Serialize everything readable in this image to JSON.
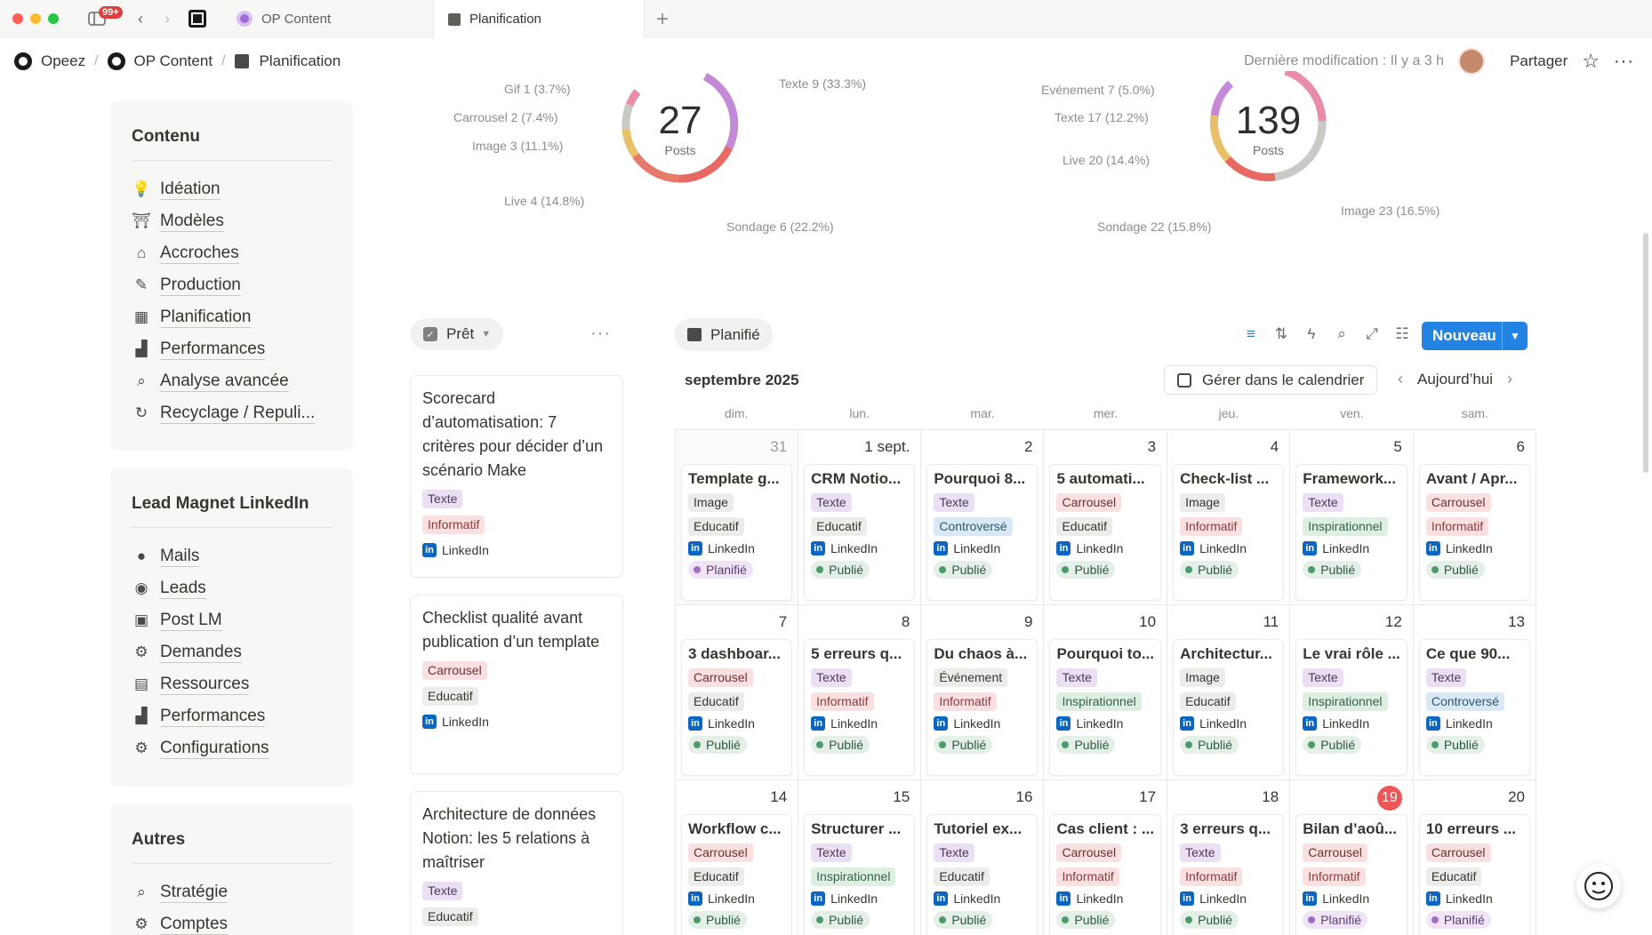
{
  "window": {
    "notif_badge": "99+",
    "tabs": [
      {
        "label": "OP Content"
      },
      {
        "label": "Planification"
      }
    ]
  },
  "breadcrumb": [
    "Opeez",
    "OP Content",
    "Planification"
  ],
  "topbar": {
    "last_modified": "Dernière modification : Il y a 3 h",
    "share": "Partager"
  },
  "sidebar": {
    "sections": [
      {
        "title": "Contenu",
        "items": [
          {
            "label": "Idéation",
            "icon": "lightbulb-icon"
          },
          {
            "label": "Modèles",
            "icon": "torii-icon"
          },
          {
            "label": "Accroches",
            "icon": "hanger-icon"
          },
          {
            "label": "Production",
            "icon": "edit-icon"
          },
          {
            "label": "Planification",
            "icon": "calendar-icon"
          },
          {
            "label": "Performances",
            "icon": "chart-icon"
          },
          {
            "label": "Analyse avancée",
            "icon": "search-icon"
          },
          {
            "label": "Recyclage / Repuli...",
            "icon": "recycle-icon"
          }
        ]
      },
      {
        "title": "Lead Magnet LinkedIn",
        "items": [
          {
            "label": "Mails",
            "icon": "chat-bubble-icon"
          },
          {
            "label": "Leads",
            "icon": "user-circle-icon"
          },
          {
            "label": "Post LM",
            "icon": "robot-icon"
          },
          {
            "label": "Demandes",
            "icon": "gears-icon"
          },
          {
            "label": "Ressources",
            "icon": "book-icon"
          },
          {
            "label": "Performances",
            "icon": "chart-icon"
          },
          {
            "label": "Configurations",
            "icon": "gear-icon"
          }
        ]
      },
      {
        "title": "Autres",
        "items": [
          {
            "label": "Stratégie",
            "icon": "search-icon"
          },
          {
            "label": "Comptes",
            "icon": "gear-icon"
          }
        ]
      }
    ]
  },
  "donuts": [
    {
      "total": "27",
      "unit": "Posts",
      "labels": [
        "Gif 1 (3.7%)",
        "Carrousel 2 (7.4%)",
        "Image 3 (11.1%)",
        "Live 4 (14.8%)",
        "Sondage 6 (22.2%)",
        "Texte 9 (33.3%)"
      ]
    },
    {
      "total": "139",
      "unit": "Posts",
      "labels": [
        "Evénement 7 (5.0%)",
        "Texte 17 (12.2%)",
        "Live 20 (14.4%)",
        "Sondage 22 (15.8%)",
        "Image 23 (16.5%)"
      ]
    }
  ],
  "kanban": {
    "group_label": "Prêt",
    "more": "···",
    "cards": [
      {
        "title": "Scorecard d’automatisation: 7 critères pour décider d’un scénario Make",
        "tags": [
          {
            "label": "Texte",
            "cls": "t-Texte"
          },
          {
            "label": "Informatif",
            "cls": "t-Informatif"
          }
        ],
        "channel": "LinkedIn"
      },
      {
        "title": "Checklist qualité avant publication d’un template",
        "tags": [
          {
            "label": "Carrousel",
            "cls": "t-Carrousel"
          },
          {
            "label": "Educatif",
            "cls": "t-Educatif"
          }
        ],
        "channel": "LinkedIn"
      },
      {
        "title": "Architecture de données Notion: les 5 relations à maîtriser",
        "tags": [
          {
            "label": "Texte",
            "cls": "t-Texte"
          },
          {
            "label": "Educatif",
            "cls": "t-Educatif"
          }
        ],
        "channel": ""
      }
    ]
  },
  "calendar": {
    "view_label": "Planifié",
    "new_label": "Nouveau",
    "month": "septembre 2025",
    "manage_label": "Gérer dans le calendrier",
    "today_label": "Aujourd’hui",
    "weekdays": [
      "dim.",
      "lun.",
      "mar.",
      "mer.",
      "jeu.",
      "ven.",
      "sam."
    ],
    "days": [
      {
        "num": "31",
        "muted": true,
        "title": "Template g...",
        "format": "Image",
        "fcls": "t-Image",
        "tone": "Educatif",
        "tcls": "t-Educatif",
        "channel": "LinkedIn",
        "status": "Planifié",
        "scls": "s-Planifie"
      },
      {
        "num": "1 sept.",
        "title": "CRM Notio...",
        "format": "Texte",
        "fcls": "t-Texte",
        "tone": "Educatif",
        "tcls": "t-Educatif",
        "channel": "LinkedIn",
        "status": "Publié",
        "scls": "s-Publie"
      },
      {
        "num": "2",
        "title": "Pourquoi 8...",
        "format": "Texte",
        "fcls": "t-Texte",
        "tone": "Controversé",
        "tcls": "t-Controverse",
        "channel": "LinkedIn",
        "status": "Publié",
        "scls": "s-Publie"
      },
      {
        "num": "3",
        "title": "5 automati...",
        "format": "Carrousel",
        "fcls": "t-Carrousel",
        "tone": "Educatif",
        "tcls": "t-Educatif",
        "channel": "LinkedIn",
        "status": "Publié",
        "scls": "s-Publie"
      },
      {
        "num": "4",
        "title": "Check-list ...",
        "format": "Image",
        "fcls": "t-Image",
        "tone": "Informatif",
        "tcls": "t-Informatif",
        "channel": "LinkedIn",
        "status": "Publié",
        "scls": "s-Publie"
      },
      {
        "num": "5",
        "title": "Framework...",
        "format": "Texte",
        "fcls": "t-Texte",
        "tone": "Inspirationnel",
        "tcls": "t-Inspirationnel",
        "channel": "LinkedIn",
        "status": "Publié",
        "scls": "s-Publie"
      },
      {
        "num": "6",
        "title": "Avant / Apr...",
        "format": "Carrousel",
        "fcls": "t-Carrousel",
        "tone": "Informatif",
        "tcls": "t-Informatif",
        "channel": "LinkedIn",
        "status": "Publié",
        "scls": "s-Publie"
      },
      {
        "num": "7",
        "title": "3 dashboar...",
        "format": "Carrousel",
        "fcls": "t-Carrousel",
        "tone": "Educatif",
        "tcls": "t-Educatif",
        "channel": "LinkedIn",
        "status": "Publié",
        "scls": "s-Publie"
      },
      {
        "num": "8",
        "title": "5 erreurs q...",
        "format": "Texte",
        "fcls": "t-Texte",
        "tone": "Informatif",
        "tcls": "t-Informatif",
        "channel": "LinkedIn",
        "status": "Publié",
        "scls": "s-Publie"
      },
      {
        "num": "9",
        "title": "Du chaos à...",
        "format": "Événement",
        "fcls": "t-Evenement",
        "tone": "Informatif",
        "tcls": "t-Informatif",
        "channel": "LinkedIn",
        "status": "Publié",
        "scls": "s-Publie"
      },
      {
        "num": "10",
        "title": "Pourquoi to...",
        "format": "Texte",
        "fcls": "t-Texte",
        "tone": "Inspirationnel",
        "tcls": "t-Inspirationnel",
        "channel": "LinkedIn",
        "status": "Publié",
        "scls": "s-Publie"
      },
      {
        "num": "11",
        "title": "Architectur...",
        "format": "Image",
        "fcls": "t-Image",
        "tone": "Educatif",
        "tcls": "t-Educatif",
        "channel": "LinkedIn",
        "status": "Publié",
        "scls": "s-Publie"
      },
      {
        "num": "12",
        "title": "Le vrai rôle ...",
        "format": "Texte",
        "fcls": "t-Texte",
        "tone": "Inspirationnel",
        "tcls": "t-Inspirationnel",
        "channel": "LinkedIn",
        "status": "Publié",
        "scls": "s-Publie"
      },
      {
        "num": "13",
        "title": "Ce que 90...",
        "format": "Texte",
        "fcls": "t-Texte",
        "tone": "Controversé",
        "tcls": "t-Controverse",
        "channel": "LinkedIn",
        "status": "Publié",
        "scls": "s-Publie"
      },
      {
        "num": "14",
        "title": "Workflow c...",
        "format": "Carrousel",
        "fcls": "t-Carrousel",
        "tone": "Educatif",
        "tcls": "t-Educatif",
        "channel": "LinkedIn",
        "status": "Publié",
        "scls": "s-Publie"
      },
      {
        "num": "15",
        "title": "Structurer ...",
        "format": "Texte",
        "fcls": "t-Texte",
        "tone": "Inspirationnel",
        "tcls": "t-Inspirationnel",
        "channel": "LinkedIn",
        "status": "Publié",
        "scls": "s-Publie"
      },
      {
        "num": "16",
        "title": "Tutoriel ex...",
        "format": "Texte",
        "fcls": "t-Texte",
        "tone": "Educatif",
        "tcls": "t-Educatif",
        "channel": "LinkedIn",
        "status": "Publié",
        "scls": "s-Publie"
      },
      {
        "num": "17",
        "title": "Cas client : ...",
        "format": "Carrousel",
        "fcls": "t-Carrousel",
        "tone": "Informatif",
        "tcls": "t-Informatif",
        "channel": "LinkedIn",
        "status": "Publié",
        "scls": "s-Publie"
      },
      {
        "num": "18",
        "title": "3 erreurs q...",
        "format": "Texte",
        "fcls": "t-Texte",
        "tone": "Informatif",
        "tcls": "t-Informatif",
        "channel": "LinkedIn",
        "status": "Publié",
        "scls": "s-Publie"
      },
      {
        "num": "19",
        "today": true,
        "title": "Bilan d’aoû...",
        "format": "Carrousel",
        "fcls": "t-Carrousel",
        "tone": "Informatif",
        "tcls": "t-Informatif",
        "channel": "LinkedIn",
        "status": "Planifié",
        "scls": "s-Planifie"
      },
      {
        "num": "20",
        "title": "10 erreurs ...",
        "format": "Carrousel",
        "fcls": "t-Carrousel",
        "tone": "Educatif",
        "tcls": "t-Educatif",
        "channel": "LinkedIn",
        "status": "Planifié",
        "scls": "s-Planifie"
      }
    ]
  }
}
